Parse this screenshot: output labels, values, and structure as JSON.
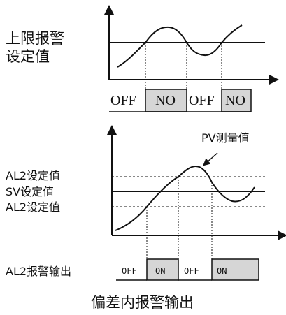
{
  "top_diagram": {
    "threshold_label_line1": "上限报警",
    "threshold_label_line2": "设定值",
    "states": [
      "OFF",
      "NO",
      "OFF",
      "NO"
    ]
  },
  "bottom_diagram": {
    "curve_label": "PV测量值",
    "upper_label": "AL2设定值",
    "sv_label": "SV设定值",
    "lower_label": "AL2设定值",
    "output_label": "AL2报警输出",
    "states": [
      "OFF",
      "ON",
      "OFF",
      "ON"
    ]
  },
  "caption": "偏差内报警输出",
  "colors": {
    "line": "#111111",
    "on_fill": "#d6d6d6"
  }
}
